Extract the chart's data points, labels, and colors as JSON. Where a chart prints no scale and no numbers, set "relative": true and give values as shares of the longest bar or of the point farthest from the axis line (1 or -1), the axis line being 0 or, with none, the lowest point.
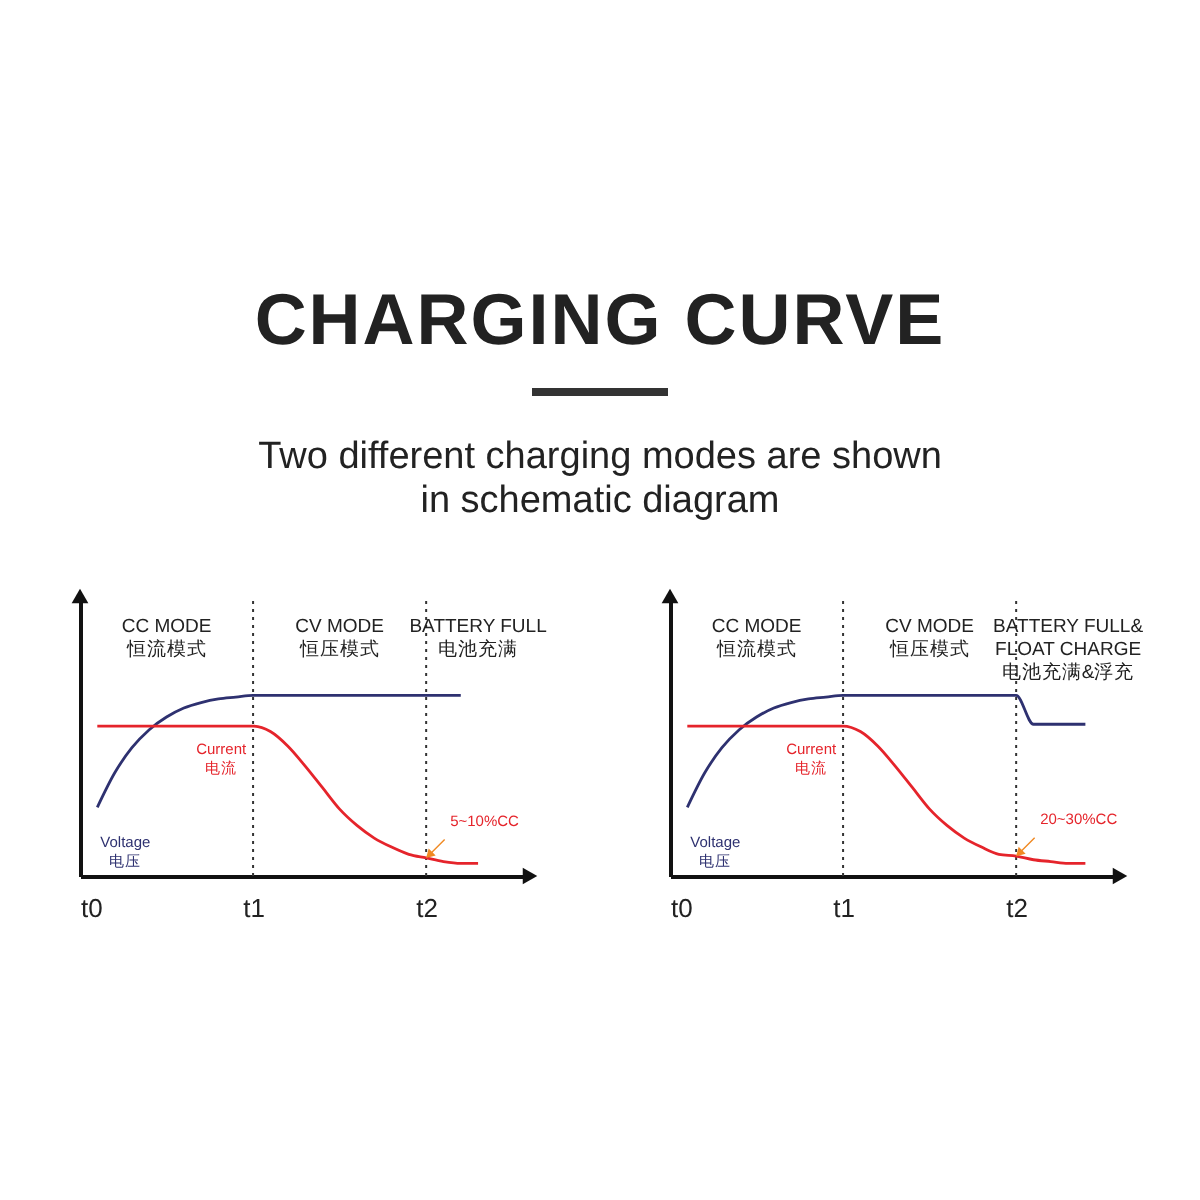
{
  "chart_data": [
    {
      "type": "line",
      "title": "CHARGING CURVE",
      "subtitle": "Two different charging modes are shown\nin schematic diagram",
      "relative": true,
      "categories": [
        "t0",
        null,
        null,
        null,
        null,
        null,
        null,
        null,
        null,
        null,
        "t1",
        null,
        null,
        null,
        null,
        null,
        null,
        null,
        null,
        null,
        "t2",
        null,
        null,
        null,
        null,
        null,
        null
      ],
      "series": [
        {
          "name": "Voltage\n电压",
          "color": "#2e3170",
          "values": [
            null,
            0.38,
            0.57,
            0.71,
            0.81,
            0.88,
            0.93,
            0.96,
            0.98,
            0.99,
            1,
            1,
            1,
            1,
            1,
            1,
            1,
            1,
            1,
            1,
            1,
            1,
            1,
            null,
            null,
            null,
            null
          ]
        },
        {
          "name": "Current\n电流",
          "color": "#e5242b",
          "values": [
            null,
            0.83,
            0.83,
            0.83,
            0.83,
            0.83,
            0.83,
            0.83,
            0.83,
            0.83,
            0.83,
            0.8,
            0.72,
            0.61,
            0.49,
            0.37,
            0.28,
            0.21,
            0.16,
            0.12,
            0.1,
            0.08,
            0.07,
            0.07,
            null,
            null,
            null
          ]
        }
      ],
      "ref_lines": [
        {
          "axis": "x",
          "value": "t1",
          "line_style": "dotted"
        },
        {
          "axis": "x",
          "value": "t2",
          "line_style": "dotted"
        }
      ],
      "annotations": [
        "CC MODE\n恒流模式",
        "CV MODE\n恒压模式",
        "BATTERY FULL\n电池充满",
        {
          "text": "5~10%CC",
          "x": "t2",
          "y": 0.1
        }
      ]
    },
    {
      "type": "line",
      "relative": true,
      "categories": [
        "t0",
        null,
        null,
        null,
        null,
        null,
        null,
        null,
        null,
        null,
        "t1",
        null,
        null,
        null,
        null,
        null,
        null,
        null,
        null,
        null,
        "t2",
        null,
        null,
        null,
        null,
        null,
        null
      ],
      "series": [
        {
          "name": "Voltage\n电压",
          "color": "#2e3170",
          "values": [
            null,
            0.38,
            0.57,
            0.71,
            0.81,
            0.88,
            0.93,
            0.96,
            0.98,
            0.99,
            1,
            1,
            1,
            1,
            1,
            1,
            1,
            1,
            1,
            1,
            1,
            0.84,
            0.84,
            0.84,
            0.84,
            null,
            null
          ]
        },
        {
          "name": "Current\n电流",
          "color": "#e5242b",
          "values": [
            null,
            0.83,
            0.83,
            0.83,
            0.83,
            0.83,
            0.83,
            0.83,
            0.83,
            0.83,
            0.83,
            0.8,
            0.72,
            0.61,
            0.49,
            0.37,
            0.28,
            0.21,
            0.16,
            0.12,
            0.11,
            0.09,
            0.08,
            0.07,
            0.07,
            null,
            null
          ]
        }
      ],
      "ref_lines": [
        {
          "axis": "x",
          "value": "t1",
          "line_style": "dotted"
        },
        {
          "axis": "x",
          "value": "t2",
          "line_style": "dotted"
        }
      ],
      "annotations": [
        "CC MODE\n恒流模式",
        "CV MODE\n恒压模式",
        "BATTERY FULL&\nFLOAT CHARGE\n电池充满&浮充",
        {
          "text": "20~30%CC",
          "x": "t2",
          "y": 0.11
        }
      ]
    }
  ]
}
